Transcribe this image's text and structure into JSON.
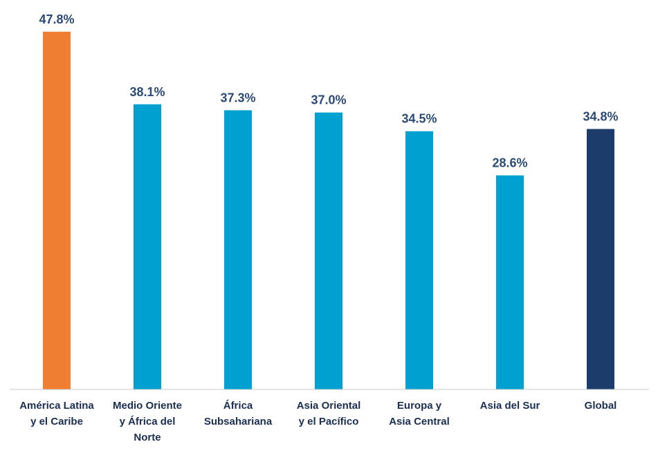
{
  "chart_data": {
    "type": "bar",
    "categories": [
      [
        "América Latina",
        "y el Caribe"
      ],
      [
        "Medio Oriente",
        "y África del",
        "Norte"
      ],
      [
        "África",
        "Subsahariana"
      ],
      [
        "Asia Oriental",
        "y el Pacífico"
      ],
      [
        "Europa y",
        "Asia Central"
      ],
      [
        "Asia del Sur"
      ],
      [
        "Global"
      ]
    ],
    "values": [
      47.8,
      38.1,
      37.3,
      37.0,
      34.5,
      28.6,
      34.8
    ],
    "value_labels": [
      "47.8%",
      "38.1%",
      "37.3%",
      "37.0%",
      "34.5%",
      "28.6%",
      "34.8%"
    ],
    "bar_colors": [
      "#ef7d32",
      "#00a0d1",
      "#00a0d1",
      "#00a0d1",
      "#00a0d1",
      "#00a0d1",
      "#1c3d6c"
    ],
    "title": "",
    "xlabel": "",
    "ylabel": "",
    "ylim": [
      0,
      50
    ],
    "grid": false,
    "legend": "none",
    "axis_color": "#c8c8c8"
  }
}
